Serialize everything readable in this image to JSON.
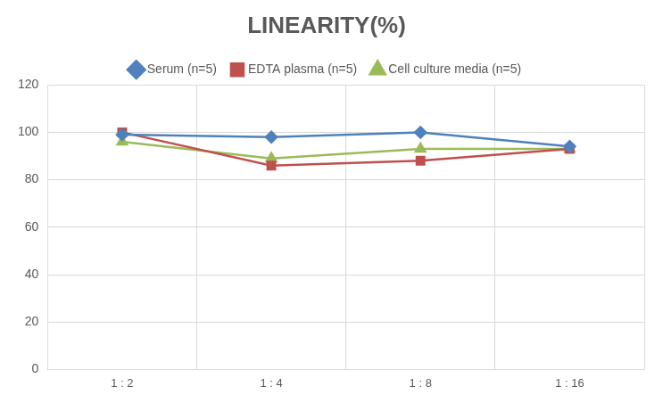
{
  "chart_data": {
    "type": "line",
    "title": "LINEARITY(%)",
    "categories": [
      "1 : 2",
      "1 : 4",
      "1 : 8",
      "1 : 16"
    ],
    "series": [
      {
        "name": "Serum (n=5)",
        "color": "#4f81bd",
        "marker": "diamond",
        "values": [
          99,
          98,
          100,
          94
        ]
      },
      {
        "name": "EDTA plasma (n=5)",
        "color": "#c0504d",
        "marker": "square",
        "values": [
          100,
          86,
          88,
          93
        ]
      },
      {
        "name": "Cell culture media (n=5)",
        "color": "#9bbb59",
        "marker": "triangle",
        "values": [
          96,
          89,
          93,
          93
        ]
      }
    ],
    "ylim": [
      0,
      120
    ],
    "yticks": [
      0,
      20,
      40,
      60,
      80,
      100,
      120
    ],
    "grid": true,
    "legend": "top"
  }
}
